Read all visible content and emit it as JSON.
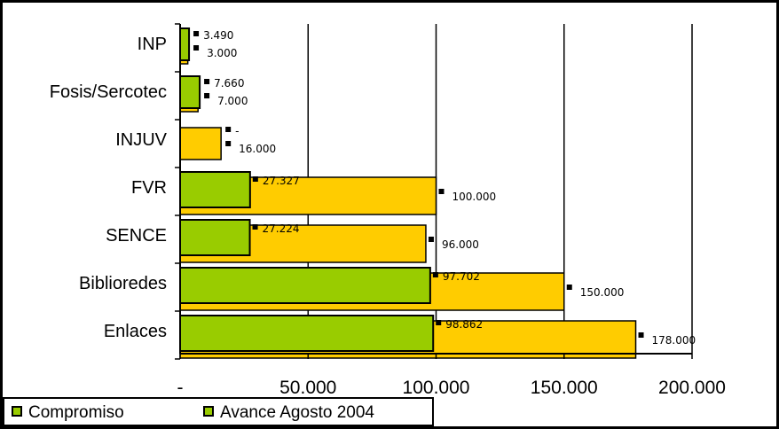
{
  "chart_data": {
    "type": "bar",
    "orientation": "horizontal",
    "categories": [
      "INP",
      "Fosis/Sercotec",
      "INJUV",
      "FVR",
      "SENCE",
      "Biblioredes",
      "Enlaces"
    ],
    "series": [
      {
        "name": "Compromiso",
        "color": "#ffcc00",
        "values": [
          3000,
          7000,
          16000,
          100000,
          96000,
          150000,
          178000
        ],
        "labels": [
          "3.000",
          "7.000",
          "16.000",
          "100.000",
          "96.000",
          "150.000",
          "178.000"
        ]
      },
      {
        "name": "Avance Agosto 2004",
        "color": "#99cc00",
        "values": [
          3490,
          7660,
          0,
          27327,
          27224,
          97702,
          98862
        ],
        "labels": [
          "3.490",
          "7.660",
          "-",
          "27.327",
          "27.224",
          "97.702",
          "98.862"
        ]
      }
    ],
    "x_ticks": [
      "-",
      "50.000",
      "100.000",
      "150.000",
      "200.000"
    ],
    "xlim": [
      0,
      200000
    ],
    "grid": true,
    "legend_position": "bottom-left"
  },
  "colors": {
    "compromiso": "#ffcc00",
    "avance": "#99cc00",
    "outline": "#000000",
    "marker": "#000000"
  }
}
